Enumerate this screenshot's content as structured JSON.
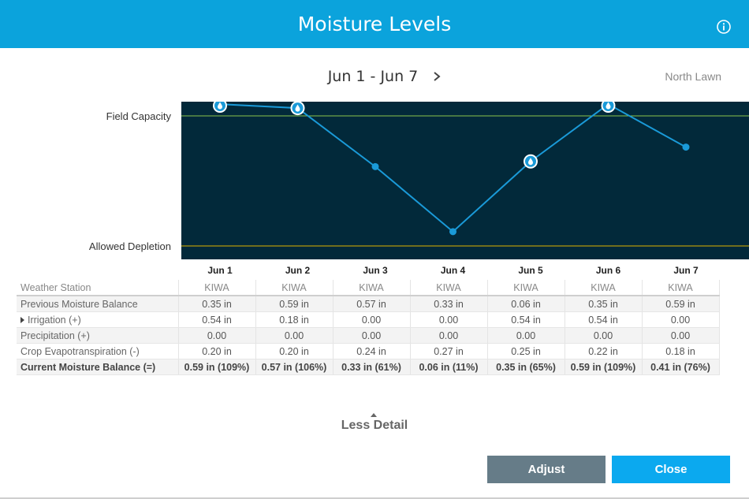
{
  "dialog": {
    "title": "Moisture Levels",
    "date_range": "Jun 1 - Jun 7",
    "location": "North Lawn",
    "less_detail": "Less Detail",
    "adjust_label": "Adjust",
    "close_label": "Close",
    "colors": {
      "header": "#0ba3dc",
      "plot_bg": "#02293a",
      "line": "#1a9ad8",
      "field_capacity": "#8bc34a",
      "allowed_depletion": "#e0b300"
    }
  },
  "chart_data": {
    "type": "line",
    "categories": [
      "Jun 1",
      "Jun 2",
      "Jun 3",
      "Jun 4",
      "Jun 5",
      "Jun 6",
      "Jun 7"
    ],
    "values": [
      109,
      106,
      61,
      11,
      65,
      109,
      76
    ],
    "value_unit": "percent",
    "markers": [
      "water-drop",
      "water-drop",
      "dot",
      "dot",
      "water-drop",
      "water-drop",
      "dot"
    ],
    "reference_lines": [
      {
        "label": "Field Capacity",
        "value": 100
      },
      {
        "label": "Allowed Depletion",
        "value": 0
      }
    ],
    "grid": false
  },
  "table": {
    "rows": [
      {
        "label": "Weather Station",
        "values": [
          "KIWA",
          "KIWA",
          "KIWA",
          "KIWA",
          "KIWA",
          "KIWA",
          "KIWA"
        ]
      },
      {
        "label": "Previous Moisture Balance",
        "values": [
          "0.35 in",
          "0.59 in",
          "0.57 in",
          "0.33 in",
          "0.06 in",
          "0.35 in",
          "0.59 in"
        ]
      },
      {
        "label": "Irrigation (+)",
        "values": [
          "0.54 in",
          "0.18 in",
          "0.00",
          "0.00",
          "0.54 in",
          "0.54 in",
          "0.00"
        ]
      },
      {
        "label": "Precipitation (+)",
        "values": [
          "0.00",
          "0.00",
          "0.00",
          "0.00",
          "0.00",
          "0.00",
          "0.00"
        ]
      },
      {
        "label": "Crop Evapotranspiration (-)",
        "values": [
          "0.20 in",
          "0.20 in",
          "0.24 in",
          "0.27 in",
          "0.25 in",
          "0.22 in",
          "0.18 in"
        ]
      },
      {
        "label": "Current Moisture Balance (=)",
        "values": [
          "0.59 in (109%)",
          "0.57 in (106%)",
          "0.33 in (61%)",
          "0.06 in (11%)",
          "0.35 in (65%)",
          "0.59 in (109%)",
          "0.41 in (76%)"
        ]
      }
    ]
  }
}
